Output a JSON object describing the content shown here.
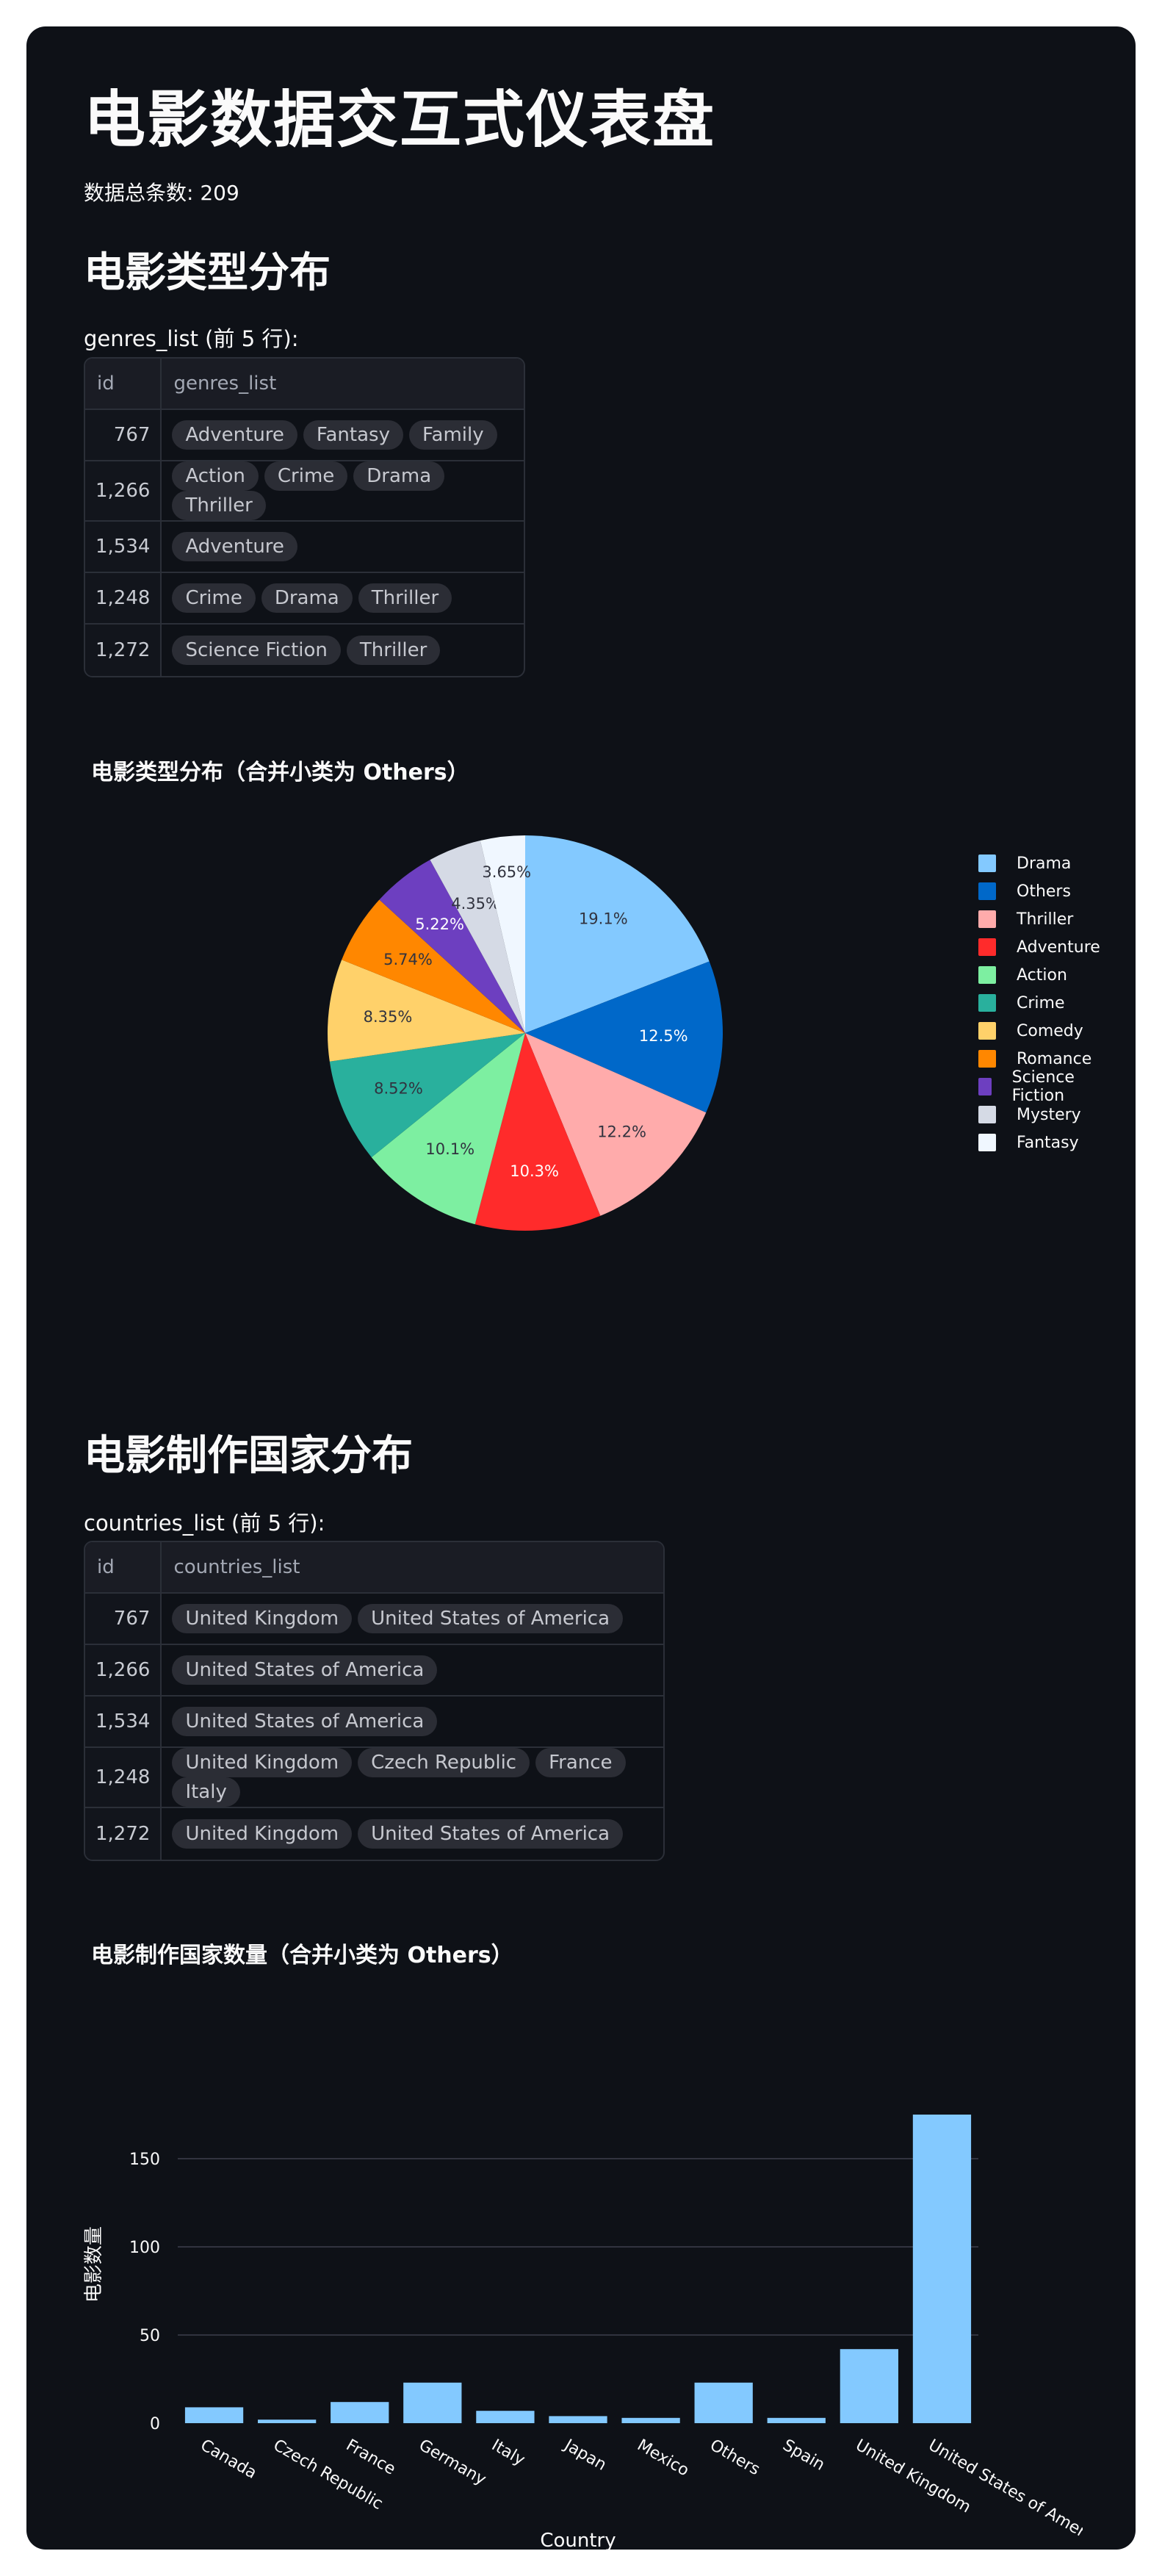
{
  "page": {
    "title": "电影数据交互式仪表盘",
    "total_count": "数据总条数: 209"
  },
  "genres_section": {
    "heading": "电影类型分布",
    "caption": "genres_list (前 5 行):",
    "columns": [
      "id",
      "genres_list"
    ],
    "rows": [
      {
        "id": "767",
        "items": [
          "Adventure",
          "Fantasy",
          "Family"
        ]
      },
      {
        "id": "1,266",
        "items": [
          "Action",
          "Crime",
          "Drama",
          "Thriller"
        ]
      },
      {
        "id": "1,534",
        "items": [
          "Adventure"
        ]
      },
      {
        "id": "1,248",
        "items": [
          "Crime",
          "Drama",
          "Thriller"
        ]
      },
      {
        "id": "1,272",
        "items": [
          "Science Fiction",
          "Thriller"
        ]
      }
    ]
  },
  "countries_section": {
    "heading": "电影制作国家分布",
    "caption": "countries_list (前 5 行):",
    "columns": [
      "id",
      "countries_list"
    ],
    "rows": [
      {
        "id": "767",
        "items": [
          "United Kingdom",
          "United States of America"
        ]
      },
      {
        "id": "1,266",
        "items": [
          "United States of America"
        ]
      },
      {
        "id": "1,534",
        "items": [
          "United States of America"
        ]
      },
      {
        "id": "1,248",
        "items": [
          "United Kingdom",
          "Czech Republic",
          "France",
          "Italy"
        ]
      },
      {
        "id": "1,272",
        "items": [
          "United Kingdom",
          "United States of America"
        ]
      }
    ]
  },
  "chart_data": [
    {
      "type": "pie",
      "title": "电影类型分布（合并小类为 Others）",
      "legend_placement": "right",
      "labels": [
        "Drama",
        "Others",
        "Thriller",
        "Adventure",
        "Action",
        "Crime",
        "Comedy",
        "Romance",
        "Science Fiction",
        "Mystery",
        "Fantasy"
      ],
      "values": [
        19.1,
        12.5,
        12.2,
        10.3,
        10.1,
        8.52,
        8.35,
        5.74,
        5.22,
        4.35,
        3.65
      ],
      "value_labels": [
        "19.1%",
        "12.5%",
        "12.2%",
        "10.3%",
        "10.1%",
        "8.52%",
        "8.35%",
        "5.74%",
        "5.22%",
        "4.35%",
        "3.65%"
      ],
      "colors": [
        "#83c9ff",
        "#0068c9",
        "#ffabab",
        "#ff2b2b",
        "#7defa1",
        "#29b09d",
        "#ffd16a",
        "#ff8700",
        "#6d3fc0",
        "#d5dae5",
        "#f0f7ff"
      ],
      "label_colors": [
        "#31333f",
        "#ffffff",
        "#31333f",
        "#ffffff",
        "#31333f",
        "#31333f",
        "#31333f",
        "#31333f",
        "#ffffff",
        "#31333f",
        "#31333f"
      ],
      "direction": "clockwise",
      "start": "top"
    },
    {
      "type": "bar",
      "title": "电影制作国家数量（合并小类为 Others）",
      "xlabel": "Country",
      "ylabel": "电影数量",
      "categories": [
        "Canada",
        "Czech Republic",
        "France",
        "Germany",
        "Italy",
        "Japan",
        "Mexico",
        "Others",
        "Spain",
        "United Kingdom",
        "United States of America"
      ],
      "values": [
        9,
        2,
        12,
        23,
        7,
        4,
        3,
        23,
        3,
        42,
        175
      ],
      "ylim": [
        0,
        180
      ],
      "yticks": [
        0,
        50,
        100,
        150
      ],
      "bar_color": "#83c9ff",
      "grid": true
    }
  ]
}
